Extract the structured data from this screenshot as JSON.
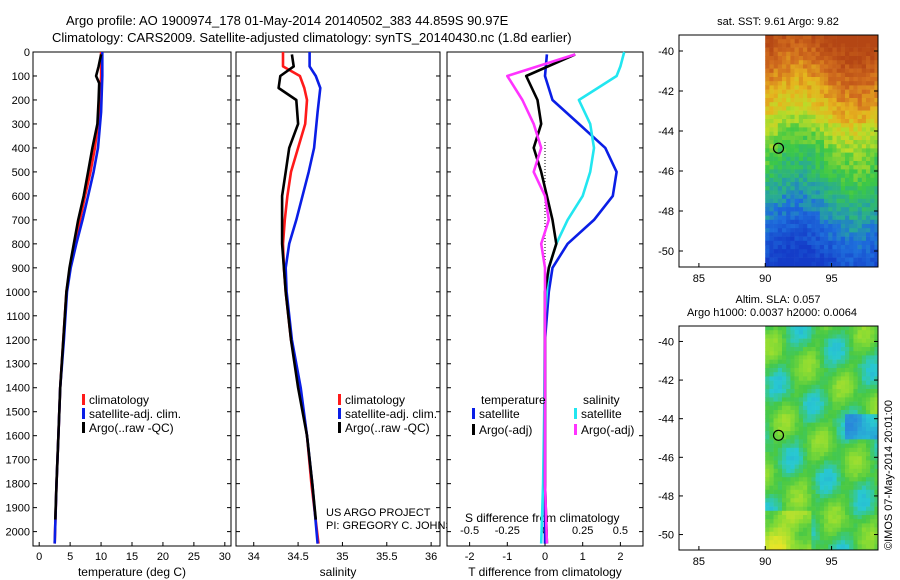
{
  "header": {
    "line1": "Argo profile: AO 1900974_178 01-May-2014 20140502_383 44.859S 90.97E",
    "line2": "Climatology: CARS2009. Satellite-adjusted climatology: synTS_20140430.nc (1.8d earlier)"
  },
  "colors": {
    "climatology": "#ff1a1a",
    "satellite": "#0a1ee6",
    "argo": "#000000",
    "sat_sal": "#22e6f0",
    "argo_sal": "#ff33ff"
  },
  "depth_ticks": [
    0,
    100,
    200,
    300,
    400,
    500,
    600,
    700,
    800,
    900,
    1000,
    1100,
    1200,
    1300,
    1400,
    1500,
    1600,
    1700,
    1800,
    1900,
    2000
  ],
  "chart_data": [
    {
      "type": "line",
      "xlabel": "temperature (deg C)",
      "xlim": [
        -1,
        31
      ],
      "ylim": [
        2060,
        0
      ],
      "xticks": [
        "0",
        "5",
        "10",
        "15",
        "20",
        "25",
        "30"
      ],
      "xtick_values": [
        0,
        5,
        10,
        15,
        20,
        25,
        30
      ],
      "legend": [
        "climatology",
        "satellite-adj. clim.",
        "Argo(..raw -QC)"
      ],
      "series": [
        {
          "name": "climatology",
          "color": "#ff1a1a",
          "points": [
            [
              10,
              0
            ],
            [
              10,
              100
            ],
            [
              9.7,
              250
            ],
            [
              9,
              400
            ],
            [
              8.3,
              500
            ],
            [
              7.4,
              600
            ],
            [
              6.6,
              700
            ],
            [
              5.8,
              800
            ],
            [
              5,
              900
            ],
            [
              4.4,
              1000
            ],
            [
              3.9,
              1200
            ],
            [
              3.4,
              1400
            ],
            [
              3.1,
              1600
            ],
            [
              2.8,
              1800
            ],
            [
              2.5,
              2050
            ]
          ]
        },
        {
          "name": "satellite-adj. clim.",
          "color": "#0a1ee6",
          "points": [
            [
              10.2,
              0
            ],
            [
              10.2,
              100
            ],
            [
              10,
              250
            ],
            [
              9.5,
              400
            ],
            [
              8.8,
              500
            ],
            [
              7.9,
              600
            ],
            [
              7,
              700
            ],
            [
              6,
              800
            ],
            [
              5.1,
              900
            ],
            [
              4.5,
              1000
            ],
            [
              4,
              1200
            ],
            [
              3.4,
              1400
            ],
            [
              3.1,
              1600
            ],
            [
              2.8,
              1800
            ],
            [
              2.5,
              2050
            ]
          ]
        },
        {
          "name": "Argo(..raw -QC)",
          "color": "#000000",
          "points": [
            [
              10,
              10
            ],
            [
              9.6,
              60
            ],
            [
              9.2,
              100
            ],
            [
              9.7,
              130
            ],
            [
              9.6,
              200
            ],
            [
              9.4,
              300
            ],
            [
              8.6,
              400
            ],
            [
              7.9,
              500
            ],
            [
              7.2,
              600
            ],
            [
              6.3,
              700
            ],
            [
              5.6,
              800
            ],
            [
              4.9,
              900
            ],
            [
              4.4,
              1000
            ],
            [
              3.9,
              1200
            ],
            [
              3.4,
              1400
            ],
            [
              3.1,
              1600
            ],
            [
              2.8,
              1800
            ],
            [
              2.6,
              1950
            ]
          ]
        }
      ]
    },
    {
      "type": "line",
      "xlabel": "salinity",
      "xlim": [
        33.8,
        36.1
      ],
      "ylim": [
        2060,
        0
      ],
      "xticks": [
        "34",
        "34.5",
        "35",
        "35.5",
        "36"
      ],
      "xtick_values": [
        34,
        34.5,
        35,
        35.5,
        36
      ],
      "legend": [
        "climatology",
        "satellite-adj. clim.",
        "Argo(..raw -QC)"
      ],
      "annotation": [
        "US ARGO PROJECT",
        "PI: GREGORY C. JOHNSON"
      ],
      "series": [
        {
          "name": "climatology",
          "color": "#ff1a1a",
          "points": [
            [
              34.33,
              0
            ],
            [
              34.33,
              60
            ],
            [
              34.52,
              100
            ],
            [
              34.57,
              150
            ],
            [
              34.6,
              200
            ],
            [
              34.58,
              300
            ],
            [
              34.5,
              400
            ],
            [
              34.42,
              500
            ],
            [
              34.38,
              600
            ],
            [
              34.35,
              700
            ],
            [
              34.33,
              800
            ],
            [
              34.34,
              900
            ],
            [
              34.36,
              1000
            ],
            [
              34.42,
              1200
            ],
            [
              34.52,
              1400
            ],
            [
              34.6,
              1600
            ],
            [
              34.65,
              1800
            ],
            [
              34.73,
              2050
            ]
          ]
        },
        {
          "name": "satellite-adj. clim.",
          "color": "#0a1ee6",
          "points": [
            [
              34.63,
              0
            ],
            [
              34.63,
              60
            ],
            [
              34.7,
              100
            ],
            [
              34.75,
              150
            ],
            [
              34.72,
              250
            ],
            [
              34.68,
              400
            ],
            [
              34.62,
              500
            ],
            [
              34.55,
              600
            ],
            [
              34.48,
              700
            ],
            [
              34.4,
              800
            ],
            [
              34.36,
              900
            ],
            [
              34.37,
              1000
            ],
            [
              34.43,
              1200
            ],
            [
              34.53,
              1400
            ],
            [
              34.6,
              1600
            ],
            [
              34.66,
              1800
            ],
            [
              34.72,
              2050
            ]
          ]
        },
        {
          "name": "Argo(..raw -QC)",
          "color": "#000000",
          "points": [
            [
              34.43,
              10
            ],
            [
              34.45,
              60
            ],
            [
              34.3,
              100
            ],
            [
              34.28,
              150
            ],
            [
              34.48,
              200
            ],
            [
              34.5,
              300
            ],
            [
              34.4,
              400
            ],
            [
              34.36,
              500
            ],
            [
              34.32,
              600
            ],
            [
              34.32,
              700
            ],
            [
              34.32,
              800
            ],
            [
              34.34,
              900
            ],
            [
              34.36,
              1000
            ],
            [
              34.42,
              1200
            ],
            [
              34.5,
              1400
            ],
            [
              34.6,
              1600
            ],
            [
              34.66,
              1800
            ],
            [
              34.7,
              1950
            ]
          ]
        }
      ]
    },
    {
      "type": "line",
      "xlabel": "T difference from climatology",
      "top_label": "S difference from climatology",
      "xlim": [
        -2.6,
        2.6
      ],
      "ylim": [
        2060,
        0
      ],
      "xticks": [
        "-2",
        "-1",
        "0",
        "1",
        "2"
      ],
      "xtick_values": [
        -2,
        -1,
        0,
        1,
        2
      ],
      "sticks": [
        "-0.5",
        "-0.25",
        "0",
        "0.25",
        "0.5"
      ],
      "stick_values": [
        -0.5,
        -0.25,
        0,
        0.25,
        0.5
      ],
      "legend_headers": [
        "temperature",
        "salinity"
      ],
      "legend": [
        "satellite",
        "Argo(-adj)",
        "satellite",
        "Argo(-adj)"
      ],
      "series": [
        {
          "name": "satellite",
          "color": "#0a1ee6",
          "points": [
            [
              0.05,
              10
            ],
            [
              0,
              100
            ],
            [
              0.2,
              200
            ],
            [
              0.9,
              300
            ],
            [
              1.6,
              400
            ],
            [
              1.9,
              500
            ],
            [
              1.8,
              600
            ],
            [
              1.3,
              700
            ],
            [
              0.6,
              800
            ],
            [
              0.2,
              900
            ],
            [
              0.1,
              1000
            ],
            [
              0,
              1200
            ],
            [
              0,
              1500
            ],
            [
              0,
              1800
            ],
            [
              0,
              2050
            ]
          ]
        },
        {
          "name": "satellite",
          "color": "#22e6f0",
          "points": [
            [
              2.1,
              0
            ],
            [
              2.0,
              60
            ],
            [
              1.9,
              100
            ],
            [
              1.4,
              150
            ],
            [
              0.9,
              200
            ],
            [
              1.2,
              300
            ],
            [
              1.3,
              400
            ],
            [
              1.2,
              500
            ],
            [
              1.0,
              600
            ],
            [
              0.6,
              700
            ],
            [
              0.3,
              800
            ],
            [
              0.1,
              900
            ],
            [
              0,
              1100
            ],
            [
              -0.02,
              1500
            ],
            [
              -0.05,
              1800
            ],
            [
              -0.1,
              2050
            ]
          ]
        },
        {
          "name": "Argo(-adj)",
          "color": "#000000",
          "points": [
            [
              0.8,
              10
            ],
            [
              -0.5,
              100
            ],
            [
              -0.2,
              200
            ],
            [
              -0.1,
              300
            ],
            [
              -0.3,
              400
            ],
            [
              -0.1,
              500
            ],
            [
              0.05,
              600
            ],
            [
              0.2,
              700
            ],
            [
              0.3,
              800
            ],
            [
              0.1,
              900
            ],
            [
              0,
              1000
            ],
            [
              0,
              1200
            ],
            [
              0,
              1500
            ],
            [
              0,
              1800
            ],
            [
              0.05,
              2050
            ]
          ]
        },
        {
          "name": "Argo(-adj)",
          "color": "#ff33ff",
          "points": [
            [
              0.8,
              10
            ],
            [
              -1,
              100
            ],
            [
              -0.6,
              200
            ],
            [
              -0.3,
              300
            ],
            [
              -0.1,
              400
            ],
            [
              -0.3,
              500
            ],
            [
              0,
              600
            ],
            [
              0.1,
              700
            ],
            [
              -0.1,
              800
            ],
            [
              0,
              900
            ],
            [
              0,
              1100
            ],
            [
              0,
              1500
            ],
            [
              0,
              1800
            ],
            [
              0.05,
              2050
            ]
          ]
        }
      ]
    },
    {
      "type": "heatmap",
      "title": "sat. SST: 9.61  Argo: 9.82",
      "xticks": [
        "85",
        "90",
        "95"
      ],
      "xtick_values": [
        85,
        90,
        95
      ],
      "yticks": [
        "-40",
        "-42",
        "-44",
        "-46",
        "-48",
        "-50"
      ],
      "ytick_values": [
        -40,
        -42,
        -44,
        -46,
        -48,
        -50
      ],
      "xlim": [
        83.5,
        98.5
      ],
      "ylim": [
        -50.8,
        -39.2
      ],
      "marker": [
        91.0,
        -44.86
      ]
    },
    {
      "type": "heatmap",
      "title": "Altim. SLA: 0.057",
      "subtitle": "Argo h1000: 0.0037  h2000: 0.0064",
      "xticks": [
        "85",
        "90",
        "95"
      ],
      "xtick_values": [
        85,
        90,
        95
      ],
      "yticks": [
        "-40",
        "-42",
        "-44",
        "-46",
        "-48",
        "-50"
      ],
      "ytick_values": [
        -40,
        -42,
        -44,
        -46,
        -48,
        -50
      ],
      "xlim": [
        83.5,
        98.5
      ],
      "ylim": [
        -50.8,
        -39.2
      ],
      "marker": [
        91.0,
        -44.86
      ]
    }
  ],
  "side_label": "©IMOS 07-May-2014 20:01:00"
}
